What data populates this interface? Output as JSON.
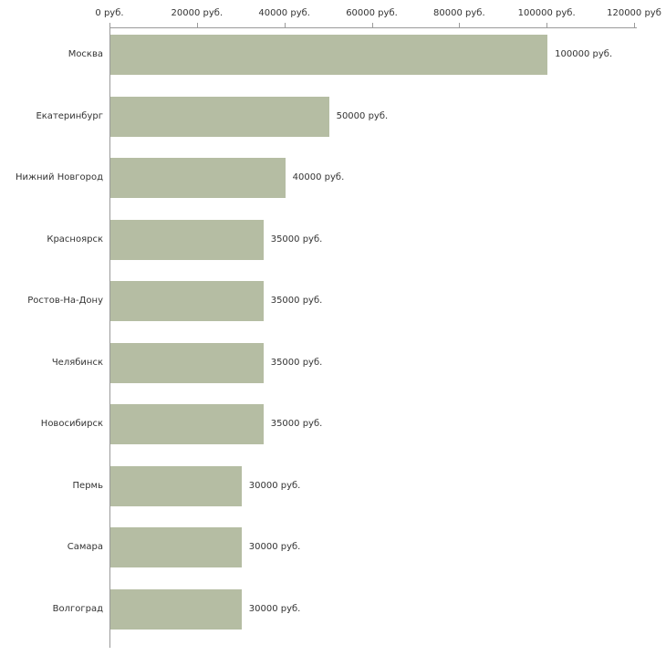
{
  "chart_data": {
    "type": "bar",
    "orientation": "horizontal",
    "title": "",
    "categories": [
      "Москва",
      "Екатеринбург",
      "Нижний Новгород",
      "Красноярск",
      "Ростов-На-Дону",
      "Челябинск",
      "Новосибирск",
      "Пермь",
      "Самара",
      "Волгоград"
    ],
    "values": [
      100000,
      50000,
      40000,
      35000,
      35000,
      35000,
      35000,
      30000,
      30000,
      30000
    ],
    "value_labels": [
      "100000 руб.",
      "50000 руб.",
      "40000 руб.",
      "35000 руб.",
      "35000 руб.",
      "35000 руб.",
      "35000 руб.",
      "30000 руб.",
      "30000 руб.",
      "30000 руб."
    ],
    "x_ticks": [
      0,
      20000,
      40000,
      60000,
      80000,
      100000,
      120000
    ],
    "x_tick_labels": [
      "0 руб.",
      "20000 руб.",
      "40000 руб.",
      "60000 руб.",
      "80000 руб.",
      "100000 руб.",
      "120000 руб"
    ],
    "xlim": [
      0,
      120000
    ],
    "grid": false,
    "legend": null,
    "bar_color": "#b5bda3",
    "axis_color": "#9a9a9a",
    "text_color": "#333333"
  }
}
